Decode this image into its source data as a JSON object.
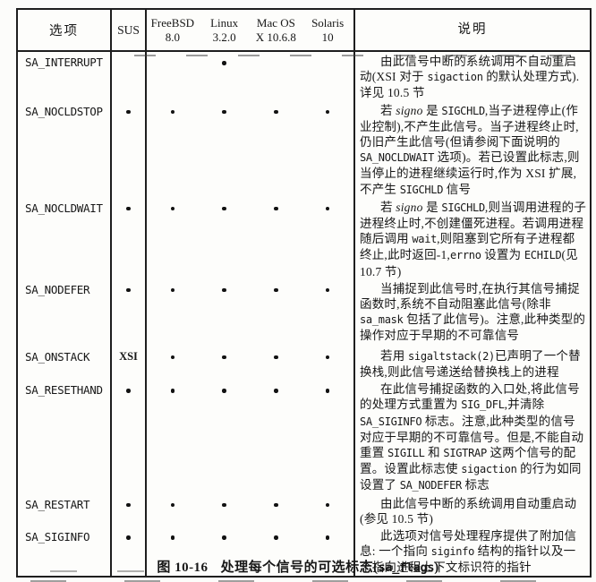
{
  "colors": {
    "ink": "#1e1e1e",
    "paper": "#fcfcfa"
  },
  "header": {
    "col_option": "选项",
    "col_sus": "SUS",
    "os_columns": [
      {
        "name": "FreeBSD",
        "version": "8.0"
      },
      {
        "name": "Linux",
        "version": "3.2.0"
      },
      {
        "name": "Mac OS",
        "version": "X 10.6.8"
      },
      {
        "name": "Solaris",
        "version": "10"
      }
    ],
    "col_desc": "说明"
  },
  "rows": [
    {
      "option": "SA_INTERRUPT",
      "marks": {
        "sus": "",
        "freebsd": "",
        "linux": "dot",
        "macos": "",
        "solaris": ""
      },
      "desc": [
        {
          "t": "由此信号中断的系统调用不自动重启动(XSI 对于 "
        },
        {
          "t": "sigaction",
          "s": "code"
        },
        {
          "t": " 的默认处理方式). 详见 10.5 节"
        }
      ]
    },
    {
      "option": "SA_NOCLDSTOP",
      "marks": {
        "sus": "dot",
        "freebsd": "dot",
        "linux": "dot",
        "macos": "dot",
        "solaris": "dot"
      },
      "desc": [
        {
          "t": "若 "
        },
        {
          "t": "signo",
          "s": "i"
        },
        {
          "t": " 是 "
        },
        {
          "t": "SIGCHLD",
          "s": "code"
        },
        {
          "t": ",当子进程停止(作业控制),不产生此信号。当子进程终止时,仍旧产生此信号(但请参阅下面说明的 "
        },
        {
          "t": "SA_NOCLDWAIT",
          "s": "code"
        },
        {
          "t": " 选项)。若已设置此标志,则当停止的进程继续运行时,作为 XSI 扩展,不产生 "
        },
        {
          "t": "SIGCHLD",
          "s": "code"
        },
        {
          "t": " 信号"
        }
      ]
    },
    {
      "option": "SA_NOCLDWAIT",
      "marks": {
        "sus": "dot",
        "freebsd": "dot",
        "linux": "dot",
        "macos": "dot",
        "solaris": "dot"
      },
      "desc": [
        {
          "t": "若 "
        },
        {
          "t": "signo",
          "s": "i"
        },
        {
          "t": " 是 "
        },
        {
          "t": "SIGCHLD",
          "s": "code"
        },
        {
          "t": ",则当调用进程的子进程终止时,不创建僵死进程。若调用进程随后调用 "
        },
        {
          "t": "wait",
          "s": "code"
        },
        {
          "t": ",则阻塞到它所有子进程都终止,此时返回-1,"
        },
        {
          "t": "errno",
          "s": "code"
        },
        {
          "t": " 设置为 "
        },
        {
          "t": "ECHILD",
          "s": "code"
        },
        {
          "t": "(见 10.7 节)"
        }
      ]
    },
    {
      "option": "SA_NODEFER",
      "marks": {
        "sus": "dot",
        "freebsd": "dot",
        "linux": "dot",
        "macos": "dot",
        "solaris": "dot"
      },
      "desc": [
        {
          "t": "当捕捉到此信号时,在执行其信号捕捉函数时,系统不自动阻塞此信号(除非 "
        },
        {
          "t": "sa_mask",
          "s": "code"
        },
        {
          "t": " 包括了此信号)。注意,此种类型的操作对应于早期的不可靠信号"
        }
      ]
    },
    {
      "option": "SA_ONSTACK",
      "marks": {
        "sus": "XSI",
        "freebsd": "dot",
        "linux": "dot",
        "macos": "dot",
        "solaris": "dot"
      },
      "desc": [
        {
          "t": "若用 "
        },
        {
          "t": "sigaltstack(2)",
          "s": "code"
        },
        {
          "t": "已声明了一个替换栈,则此信号递送给替换栈上的进程"
        }
      ]
    },
    {
      "option": "SA_RESETHAND",
      "marks": {
        "sus": "dot",
        "freebsd": "dot",
        "linux": "dot",
        "macos": "dot",
        "solaris": "dot"
      },
      "desc": [
        {
          "t": "在此信号捕捉函数的入口处,将此信号的处理方式重置为 "
        },
        {
          "t": "SIG_DFL",
          "s": "code"
        },
        {
          "t": ",并清除 "
        },
        {
          "t": "SA_SIGINFO",
          "s": "code"
        },
        {
          "t": " 标志。注意,此种类型的信号对应于早期的不可靠信号。但是,不能自动重置 "
        },
        {
          "t": "SIGILL",
          "s": "code"
        },
        {
          "t": " 和 "
        },
        {
          "t": "SIGTRAP",
          "s": "code"
        },
        {
          "t": " 这两个信号的配置。设置此标志使 "
        },
        {
          "t": "sigaction",
          "s": "code"
        },
        {
          "t": " 的行为如同设置了 "
        },
        {
          "t": "SA_NODEFER",
          "s": "code"
        },
        {
          "t": " 标志"
        }
      ]
    },
    {
      "option": "SA_RESTART",
      "marks": {
        "sus": "dot",
        "freebsd": "dot",
        "linux": "dot",
        "macos": "dot",
        "solaris": "dot"
      },
      "desc": [
        {
          "t": "由此信号中断的系统调用自动重启动(参见 10.5 节)"
        }
      ]
    },
    {
      "option": "SA_SIGINFO",
      "marks": {
        "sus": "dot",
        "freebsd": "dot",
        "linux": "dot",
        "macos": "dot",
        "solaris": "dot"
      },
      "desc": [
        {
          "t": "此选项对信号处理程序提供了附加信息: 一个指向 "
        },
        {
          "t": "siginfo",
          "s": "code"
        },
        {
          "t": " 结构的指针以及一个指向进程上下文标识符的指针"
        }
      ]
    }
  ],
  "caption": {
    "fig_no": "图 10-16",
    "runs": [
      {
        "t": "处理每个信号的可选标志("
      },
      {
        "t": "sa_flags",
        "s": "code"
      },
      {
        "t": ")"
      }
    ]
  }
}
